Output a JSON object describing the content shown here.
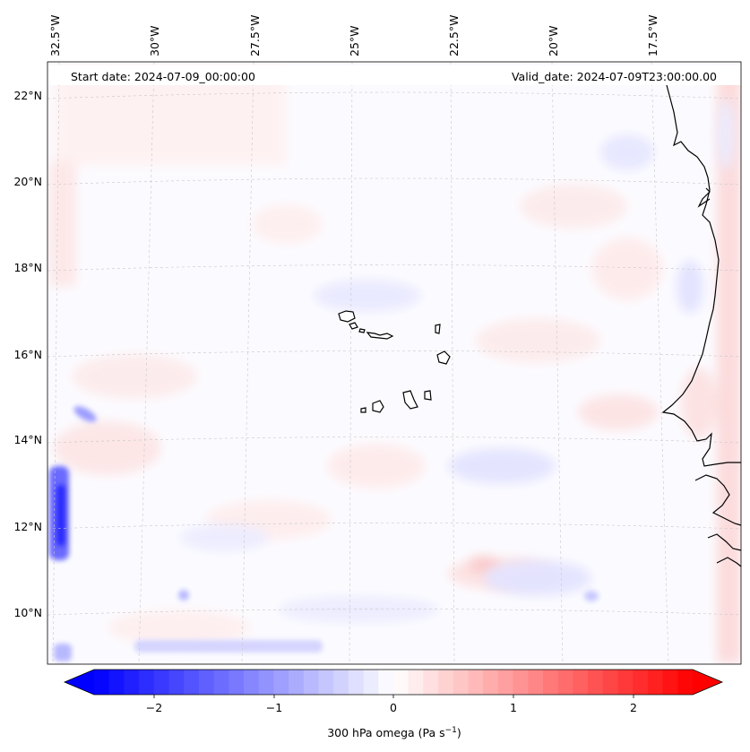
{
  "map": {
    "header": {
      "start_date": "Start date: 2024-07-09_00:00:00",
      "valid_date": "Valid_date: 2024-07-09T23:00:00.00"
    },
    "longitude_labels": [
      "32.5°W",
      "30°W",
      "27.5°W",
      "25°W",
      "22.5°W",
      "20°W",
      "17.5°W"
    ],
    "latitude_labels": [
      "22°N",
      "20°N",
      "18°N",
      "16°N",
      "14°N",
      "12°N",
      "10°N"
    ],
    "colorbar": {
      "label": "300 hPa omega (Pa s",
      "label_exponent": "−1",
      "label_close": ")",
      "ticks": [
        "−2",
        "−1",
        "0",
        "1",
        "2"
      ],
      "range": [
        -2.75,
        2.75
      ],
      "colors": {
        "negative": "#0000ff",
        "zero": "#ffffff",
        "positive": "#ff0000"
      }
    }
  }
}
